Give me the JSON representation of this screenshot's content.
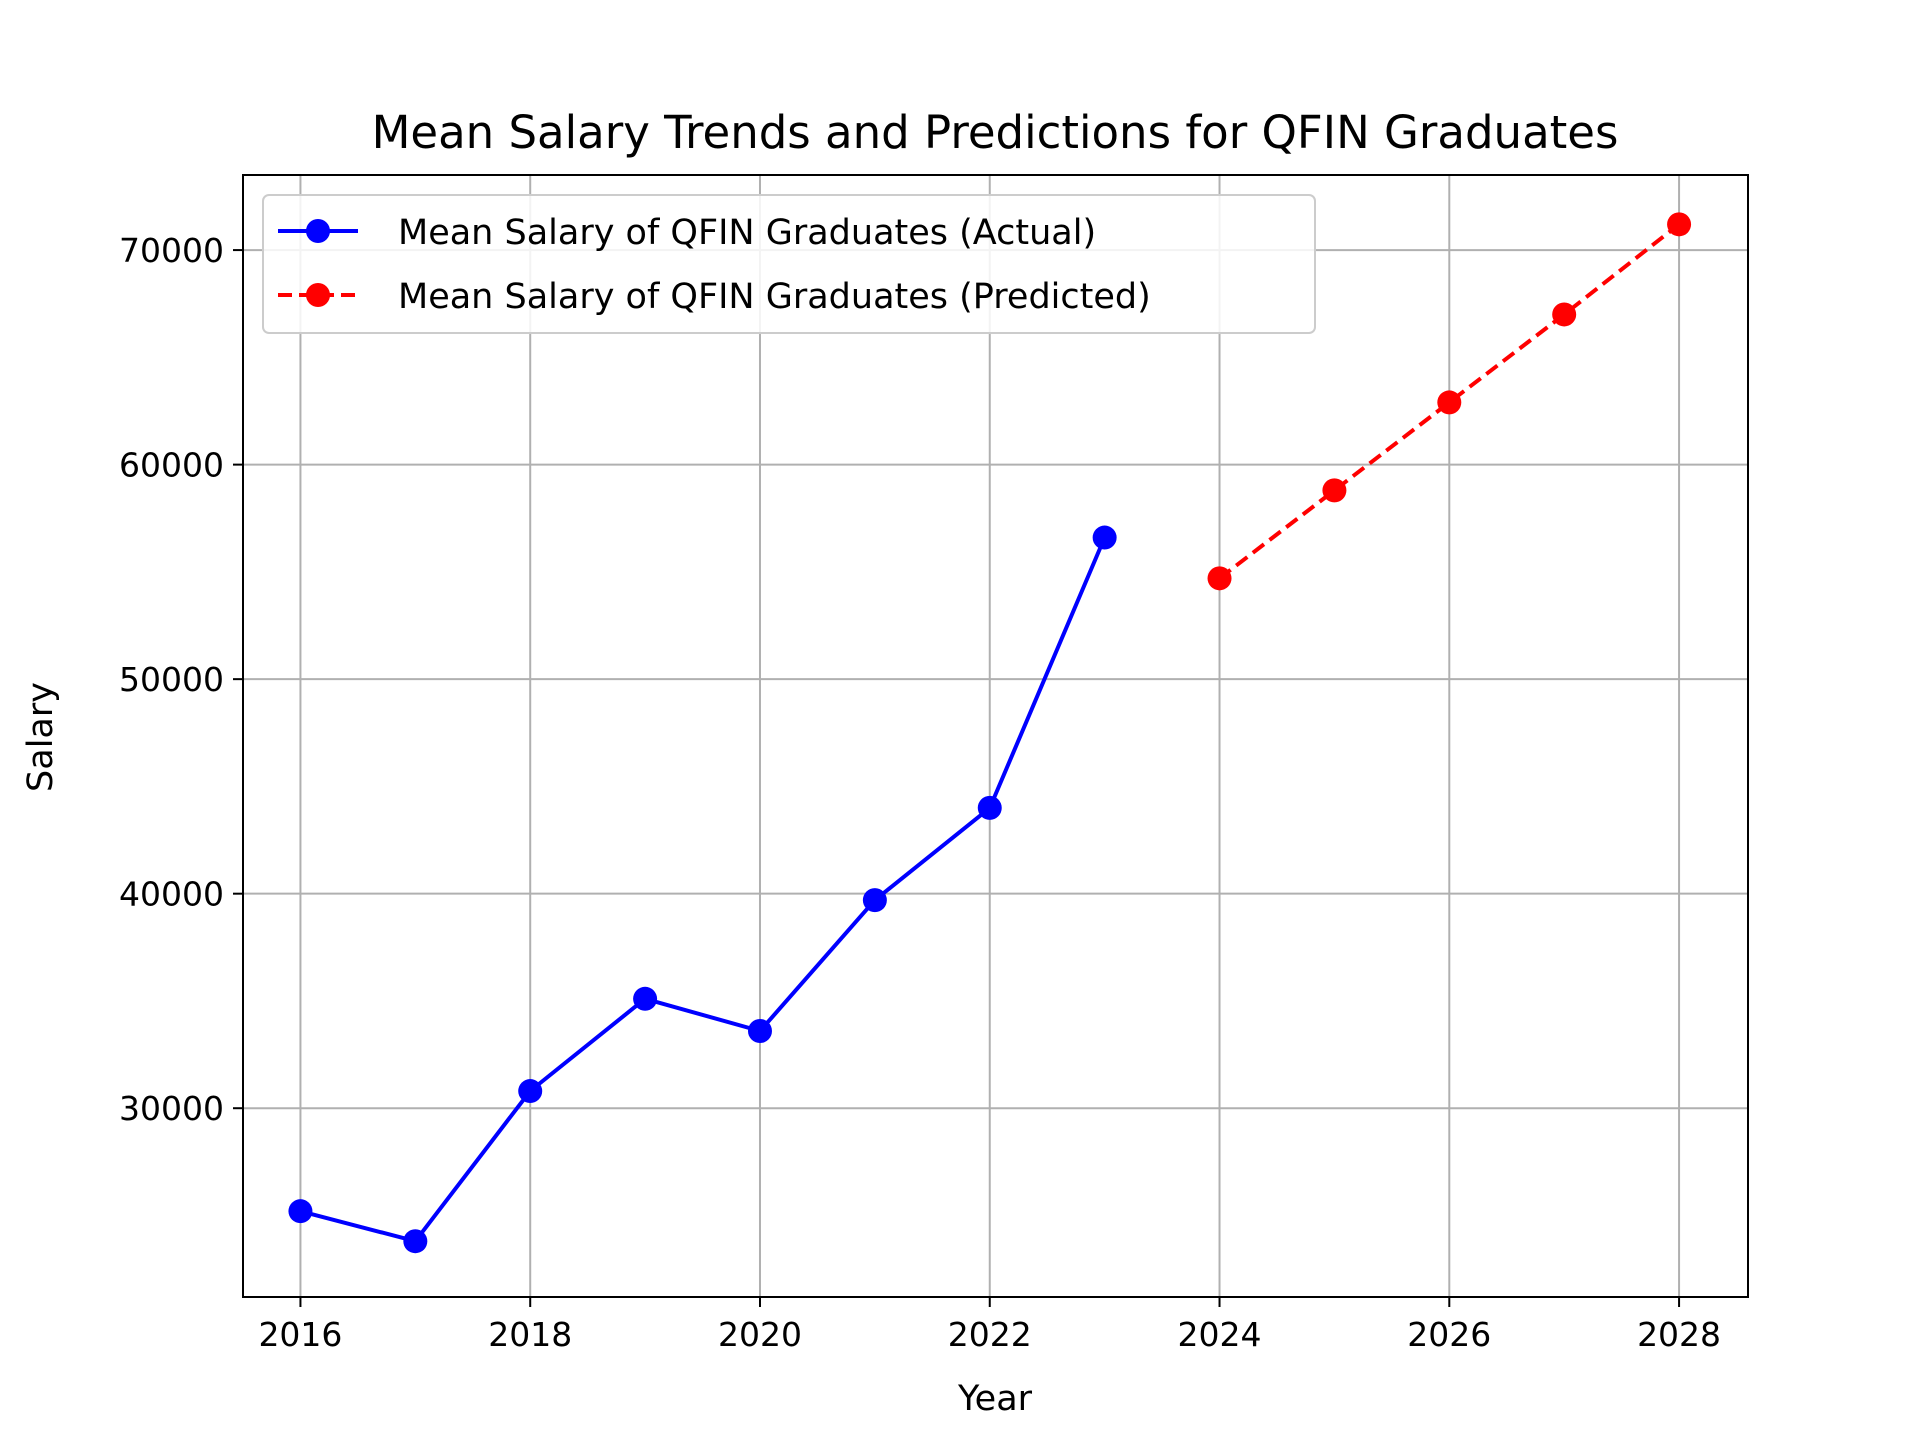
{
  "chart_data": {
    "type": "line",
    "title": "Mean Salary Trends and Predictions for QFIN Graduates",
    "xlabel": "Year",
    "ylabel": "Salary",
    "xlim": [
      2015.5,
      2028.6
    ],
    "ylim": [
      21200,
      73500
    ],
    "x_ticks": [
      2016,
      2018,
      2020,
      2022,
      2024,
      2026,
      2028
    ],
    "y_ticks": [
      30000,
      40000,
      50000,
      60000,
      70000
    ],
    "grid": true,
    "legend_position": "upper-left",
    "series": [
      {
        "name": "Mean Salary of QFIN Graduates (Actual)",
        "color": "#0000ff",
        "line_style": "solid",
        "marker": "circle",
        "x": [
          2016,
          2017,
          2018,
          2019,
          2020,
          2021,
          2022,
          2023
        ],
        "y": [
          25200,
          23800,
          30800,
          35100,
          33600,
          39700,
          44000,
          56600
        ]
      },
      {
        "name": "Mean Salary of QFIN Graduates (Predicted)",
        "color": "#ff0000",
        "line_style": "dashed",
        "marker": "circle",
        "x": [
          2024,
          2025,
          2026,
          2027,
          2028
        ],
        "y": [
          54700,
          58800,
          62900,
          67000,
          71200
        ]
      }
    ]
  }
}
